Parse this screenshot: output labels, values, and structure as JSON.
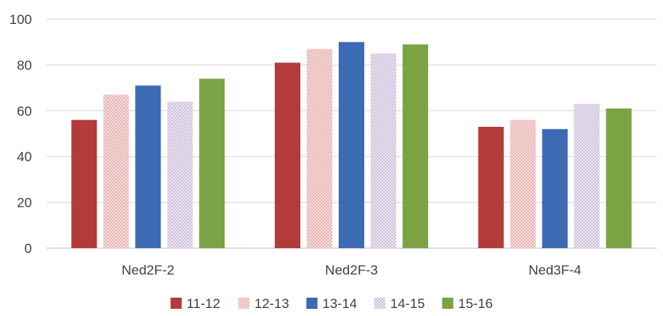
{
  "chart_data": {
    "type": "bar",
    "title": "",
    "xlabel": "",
    "ylabel": "",
    "ylim": [
      0,
      100
    ],
    "yticks": [
      0,
      20,
      40,
      60,
      80,
      100
    ],
    "grid": true,
    "legend_position": "bottom",
    "categories": [
      "Ned2F-2",
      "Ned2F-3",
      "Ned3F-4"
    ],
    "series": [
      {
        "name": "11-12",
        "values": [
          56,
          81,
          53
        ],
        "color": "#b33c3a",
        "pattern": "solid"
      },
      {
        "name": "12-13",
        "values": [
          67,
          87,
          56
        ],
        "color": "#e9a7a6",
        "pattern": "hatched"
      },
      {
        "name": "13-14",
        "values": [
          71,
          90,
          52
        ],
        "color": "#3c6ab3",
        "pattern": "solid"
      },
      {
        "name": "14-15",
        "values": [
          64,
          85,
          63
        ],
        "color": "#c6b7d8",
        "pattern": "hatched"
      },
      {
        "name": "15-16",
        "values": [
          74,
          89,
          61
        ],
        "color": "#7ba344",
        "pattern": "solid"
      }
    ]
  }
}
